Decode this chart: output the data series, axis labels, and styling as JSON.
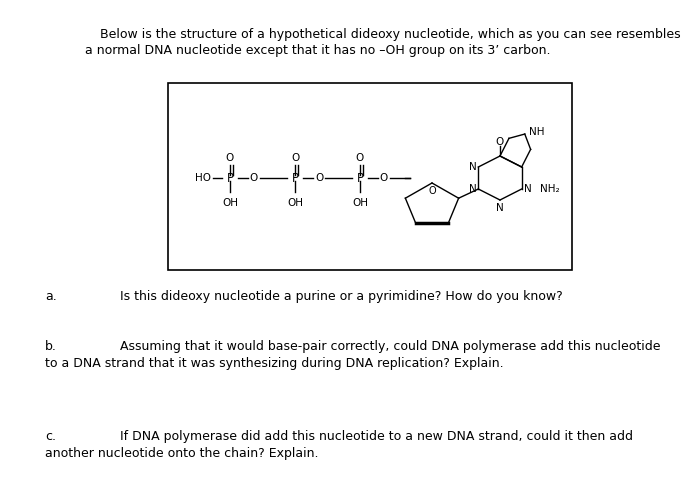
{
  "background_color": "#ffffff",
  "title_line1": "Below is the structure of a hypothetical dideoxy nucleotide, which as you can see resembles",
  "title_line2": "a normal DNA nucleotide except that it has no –OH group on its 3’ carbon.",
  "question_a_label": "a.",
  "question_a_text": "Is this dideoxy nucleotide a purine or a pyrimidine? How do you know?",
  "question_b_label": "b.",
  "question_b_line1": "Assuming that it would base-pair correctly, could DNA polymerase add this nucleotide",
  "question_b_line2": "to a DNA strand that it was synthesizing during DNA replication? Explain.",
  "question_c_label": "c.",
  "question_c_line1": "If DNA polymerase did add this nucleotide to a new DNA strand, could it then add",
  "question_c_line2": "another nucleotide onto the chain? Explain.",
  "font_size_title": 9.0,
  "font_size_questions": 9.0,
  "font_size_label": 9.0,
  "font_size_structure": 7.5
}
